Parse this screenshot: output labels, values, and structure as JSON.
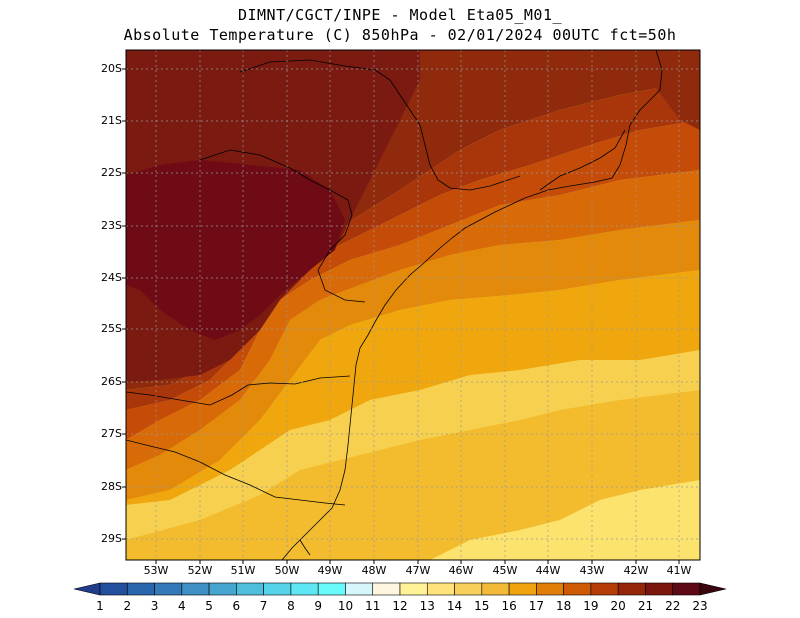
{
  "title": {
    "line1": "DIMNT/CGCT/INPE -  Model Eta05_M01_",
    "line2": "Absolute Temperature (C) 850hPa -  02/01/2024 00UTC fct=50h"
  },
  "map": {
    "region": "South-Southeast Brazil",
    "lat_range": [
      -29.4,
      -19.9
    ],
    "lon_range": [
      -53.8,
      -40.5
    ],
    "lat_labels": [
      "20S",
      "21S",
      "22S",
      "23S",
      "24S",
      "25S",
      "26S",
      "27S",
      "28S",
      "29S"
    ],
    "lon_labels": [
      "53W",
      "52W",
      "51W",
      "50W",
      "49W",
      "48W",
      "47W",
      "46W",
      "45W",
      "44W",
      "43W",
      "42W",
      "41W"
    ],
    "gridlines": true
  },
  "colorbar": {
    "labels": [
      "1",
      "2",
      "3",
      "4",
      "5",
      "6",
      "7",
      "8",
      "9",
      "10",
      "11",
      "12",
      "13",
      "14",
      "15",
      "16",
      "17",
      "18",
      "19",
      "20",
      "21",
      "22",
      "23"
    ],
    "colors": [
      "#1f3d8a",
      "#22509c",
      "#2a66ad",
      "#3479b9",
      "#3d8fc4",
      "#46a6d0",
      "#4fbedc",
      "#55d3e8",
      "#5ee6f2",
      "#69fafc",
      "#d6f6fb",
      "#fff6e0",
      "#fff299",
      "#ffe37a",
      "#f8cf5a",
      "#f3b938",
      "#f0a30f",
      "#e07e08",
      "#cf5a06",
      "#b53d07",
      "#96260a",
      "#7b150f",
      "#5e0a16",
      "#3a050f"
    ]
  },
  "zones": {
    "t23": "#6e0b14",
    "t22": "#7a1a10",
    "t21": "#8f2a0c",
    "t20": "#a8360a",
    "t19": "#c54c08",
    "t18": "#d86a07",
    "t17": "#e38a0a",
    "t16": "#f0a70e",
    "t15": "#f2bc2e",
    "t14": "#f6d04e",
    "t13": "#fbe36e"
  }
}
